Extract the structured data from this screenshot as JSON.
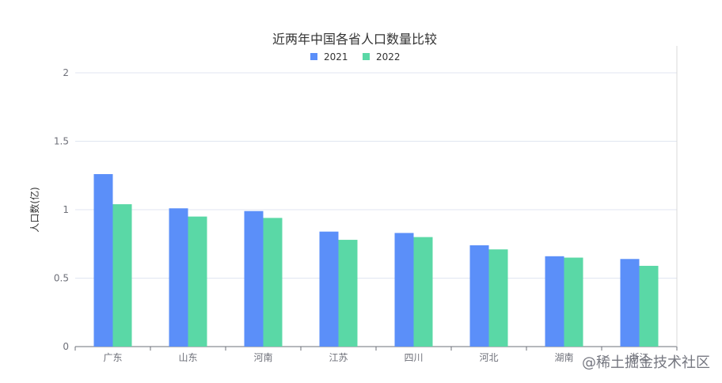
{
  "chart_data": {
    "type": "bar",
    "title": "近两年中国各省人口数量比较",
    "ylabel": "人口数(亿)",
    "xlabel": "",
    "categories": [
      "广东",
      "山东",
      "河南",
      "江苏",
      "四川",
      "河北",
      "湖南",
      "浙江"
    ],
    "series": [
      {
        "name": "2021",
        "color": "#5b8ff9",
        "values": [
          1.26,
          1.01,
          0.99,
          0.84,
          0.83,
          0.74,
          0.66,
          0.64
        ]
      },
      {
        "name": "2022",
        "color": "#5ad8a6",
        "values": [
          1.04,
          0.95,
          0.94,
          0.78,
          0.8,
          0.71,
          0.65,
          0.59
        ]
      }
    ],
    "ylim": [
      0,
      2
    ],
    "yticks": [
      "0",
      "0.5",
      "1",
      "1.5",
      "2"
    ],
    "grid": true,
    "legend_position": "top-center"
  },
  "watermark": {
    "text": "@稀土掘金技术社区"
  }
}
